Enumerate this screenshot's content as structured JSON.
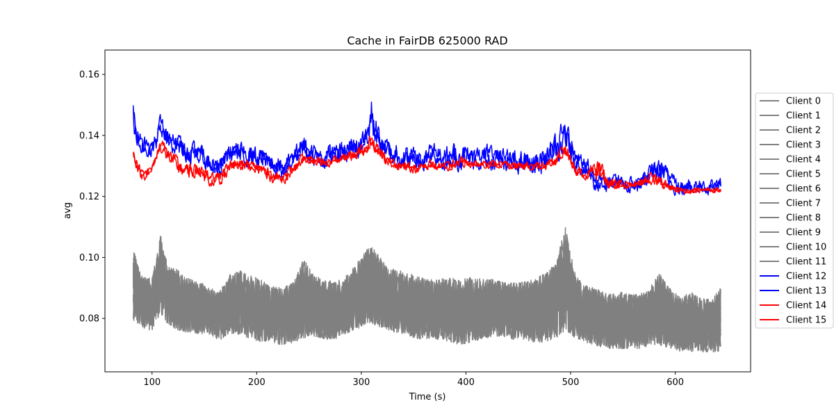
{
  "chart_data": {
    "type": "line",
    "title": "Cache in  FairDB 625000 RAD",
    "xlabel": "Time (s)",
    "ylabel": "avg",
    "xlim": [
      55,
      672
    ],
    "ylim": [
      0.0625,
      0.168
    ],
    "xticks": [
      100,
      200,
      300,
      400,
      500,
      600
    ],
    "yticks": [
      0.08,
      0.1,
      0.12,
      0.14,
      0.16
    ],
    "ytick_labels": [
      "0.08",
      "0.10",
      "0.12",
      "0.14",
      "0.16"
    ],
    "grid": false,
    "legend_position": "center-right outside",
    "series_colors": {
      "gray": "#808080",
      "blue": "#0000ff",
      "red": "#ff0000"
    },
    "series": [
      {
        "name": "Client 0",
        "color": "#808080",
        "group": "low"
      },
      {
        "name": "Client 1",
        "color": "#808080",
        "group": "low"
      },
      {
        "name": "Client 2",
        "color": "#808080",
        "group": "low"
      },
      {
        "name": "Client 3",
        "color": "#808080",
        "group": "low"
      },
      {
        "name": "Client 4",
        "color": "#808080",
        "group": "low"
      },
      {
        "name": "Client 5",
        "color": "#808080",
        "group": "low"
      },
      {
        "name": "Client 6",
        "color": "#808080",
        "group": "low"
      },
      {
        "name": "Client 7",
        "color": "#808080",
        "group": "low"
      },
      {
        "name": "Client 8",
        "color": "#808080",
        "group": "low"
      },
      {
        "name": "Client 9",
        "color": "#808080",
        "group": "low"
      },
      {
        "name": "Client 10",
        "color": "#808080",
        "group": "low"
      },
      {
        "name": "Client 11",
        "color": "#808080",
        "group": "low"
      },
      {
        "name": "Client 12",
        "color": "#0000ff",
        "group": "high"
      },
      {
        "name": "Client 13",
        "color": "#0000ff",
        "group": "high"
      },
      {
        "name": "Client 14",
        "color": "#ff0000",
        "group": "high"
      },
      {
        "name": "Client 15",
        "color": "#ff0000",
        "group": "high"
      }
    ],
    "x": [
      82,
      90,
      100,
      108,
      115,
      125,
      135,
      145,
      155,
      165,
      175,
      185,
      195,
      205,
      215,
      225,
      235,
      245,
      255,
      265,
      275,
      285,
      295,
      305,
      310,
      315,
      325,
      335,
      345,
      355,
      365,
      375,
      385,
      395,
      405,
      415,
      425,
      435,
      445,
      455,
      465,
      475,
      485,
      495,
      505,
      515,
      525,
      535,
      545,
      555,
      565,
      575,
      585,
      595,
      605,
      615,
      625,
      635,
      644
    ],
    "envelopes": {
      "gray_band": {
        "low": [
          0.078,
          0.076,
          0.075,
          0.08,
          0.077,
          0.075,
          0.074,
          0.074,
          0.073,
          0.072,
          0.074,
          0.073,
          0.072,
          0.071,
          0.071,
          0.07,
          0.071,
          0.072,
          0.073,
          0.072,
          0.072,
          0.074,
          0.075,
          0.077,
          0.077,
          0.076,
          0.075,
          0.074,
          0.073,
          0.072,
          0.072,
          0.072,
          0.071,
          0.07,
          0.071,
          0.072,
          0.073,
          0.073,
          0.072,
          0.072,
          0.071,
          0.071,
          0.072,
          0.074,
          0.072,
          0.071,
          0.07,
          0.069,
          0.069,
          0.069,
          0.069,
          0.07,
          0.07,
          0.069,
          0.068,
          0.068,
          0.068,
          0.068,
          0.068
        ],
        "high": [
          0.104,
          0.095,
          0.094,
          0.109,
          0.099,
          0.097,
          0.094,
          0.093,
          0.091,
          0.09,
          0.096,
          0.097,
          0.095,
          0.094,
          0.092,
          0.091,
          0.093,
          0.101,
          0.095,
          0.094,
          0.093,
          0.095,
          0.099,
          0.104,
          0.105,
          0.103,
          0.098,
          0.097,
          0.096,
          0.095,
          0.094,
          0.094,
          0.095,
          0.094,
          0.095,
          0.094,
          0.094,
          0.093,
          0.093,
          0.093,
          0.094,
          0.096,
          0.099,
          0.112,
          0.095,
          0.092,
          0.091,
          0.089,
          0.09,
          0.089,
          0.089,
          0.091,
          0.096,
          0.091,
          0.088,
          0.09,
          0.088,
          0.087,
          0.092
        ]
      },
      "blue_band": {
        "low": [
          0.134,
          0.13,
          0.129,
          0.133,
          0.131,
          0.128,
          0.127,
          0.126,
          0.124,
          0.121,
          0.127,
          0.126,
          0.125,
          0.124,
          0.123,
          0.122,
          0.126,
          0.127,
          0.126,
          0.125,
          0.127,
          0.126,
          0.128,
          0.13,
          0.132,
          0.129,
          0.127,
          0.125,
          0.124,
          0.123,
          0.126,
          0.125,
          0.125,
          0.124,
          0.125,
          0.124,
          0.125,
          0.124,
          0.124,
          0.123,
          0.122,
          0.123,
          0.125,
          0.128,
          0.124,
          0.121,
          0.118,
          0.118,
          0.119,
          0.118,
          0.118,
          0.12,
          0.12,
          0.119,
          0.116,
          0.118,
          0.118,
          0.118,
          0.119
        ],
        "high": [
          0.155,
          0.144,
          0.141,
          0.153,
          0.146,
          0.146,
          0.142,
          0.141,
          0.137,
          0.138,
          0.143,
          0.141,
          0.142,
          0.14,
          0.139,
          0.136,
          0.139,
          0.146,
          0.141,
          0.14,
          0.142,
          0.143,
          0.146,
          0.148,
          0.163,
          0.15,
          0.143,
          0.142,
          0.141,
          0.14,
          0.143,
          0.141,
          0.141,
          0.143,
          0.14,
          0.141,
          0.142,
          0.14,
          0.139,
          0.139,
          0.14,
          0.141,
          0.145,
          0.152,
          0.14,
          0.138,
          0.132,
          0.13,
          0.131,
          0.129,
          0.131,
          0.133,
          0.139,
          0.131,
          0.129,
          0.129,
          0.128,
          0.129,
          0.13
        ]
      },
      "red_band": {
        "low": [
          0.13,
          0.122,
          0.126,
          0.132,
          0.128,
          0.124,
          0.123,
          0.124,
          0.121,
          0.121,
          0.126,
          0.126,
          0.126,
          0.125,
          0.122,
          0.122,
          0.125,
          0.128,
          0.128,
          0.128,
          0.129,
          0.129,
          0.13,
          0.132,
          0.134,
          0.131,
          0.128,
          0.127,
          0.126,
          0.126,
          0.127,
          0.127,
          0.127,
          0.128,
          0.128,
          0.128,
          0.128,
          0.128,
          0.127,
          0.127,
          0.127,
          0.127,
          0.128,
          0.13,
          0.125,
          0.124,
          0.12,
          0.12,
          0.12,
          0.121,
          0.121,
          0.122,
          0.121,
          0.12,
          0.12,
          0.12,
          0.12,
          0.12,
          0.12
        ],
        "high": [
          0.138,
          0.131,
          0.132,
          0.142,
          0.139,
          0.136,
          0.133,
          0.134,
          0.13,
          0.131,
          0.135,
          0.135,
          0.134,
          0.133,
          0.131,
          0.13,
          0.133,
          0.136,
          0.135,
          0.134,
          0.135,
          0.136,
          0.138,
          0.139,
          0.144,
          0.14,
          0.135,
          0.134,
          0.133,
          0.132,
          0.134,
          0.133,
          0.133,
          0.135,
          0.133,
          0.133,
          0.133,
          0.133,
          0.133,
          0.133,
          0.133,
          0.133,
          0.135,
          0.141,
          0.133,
          0.128,
          0.141,
          0.128,
          0.128,
          0.126,
          0.127,
          0.13,
          0.129,
          0.126,
          0.124,
          0.124,
          0.124,
          0.124,
          0.124
        ]
      }
    }
  }
}
